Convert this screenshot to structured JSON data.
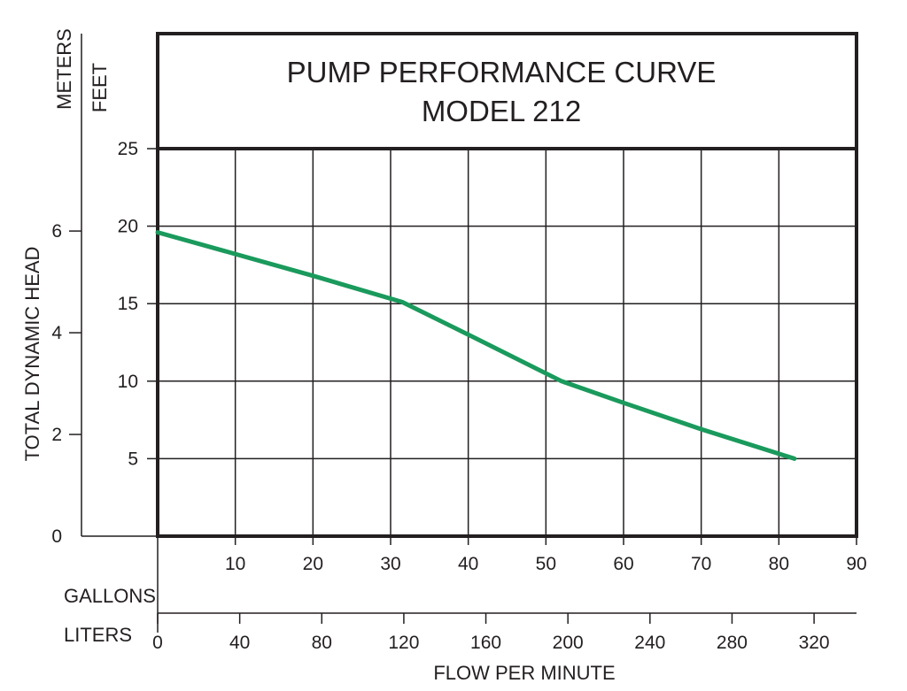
{
  "chart_data": {
    "type": "line",
    "title": "PUMP PERFORMANCE CURVE",
    "subtitle": "MODEL 212",
    "ylabel": "TOTAL DYNAMIC HEAD",
    "xlabel": "FLOW PER MINUTE",
    "y_feet": {
      "unit_label": "FEET",
      "ticks": [
        5,
        10,
        15,
        20,
        25
      ],
      "range": [
        0,
        25
      ]
    },
    "y_meters": {
      "unit_label": "METERS",
      "ticks": [
        0,
        2,
        4,
        6
      ]
    },
    "x_gallons": {
      "unit_label": "GALLONS",
      "ticks": [
        10,
        20,
        30,
        40,
        50,
        60,
        70,
        80,
        90
      ],
      "range": [
        0,
        90
      ]
    },
    "x_liters": {
      "unit_label": "LITERS",
      "ticks": [
        0,
        40,
        80,
        120,
        160,
        200,
        240,
        280,
        320
      ]
    },
    "grid": true,
    "series": [
      {
        "color": "#1a9a5c",
        "x": [
          0,
          10,
          20,
          31.5,
          40,
          52,
          60,
          70,
          82
        ],
        "y": [
          19.6,
          18.2,
          16.8,
          15.1,
          13.0,
          10.0,
          8.6,
          6.9,
          5.0
        ]
      }
    ]
  }
}
